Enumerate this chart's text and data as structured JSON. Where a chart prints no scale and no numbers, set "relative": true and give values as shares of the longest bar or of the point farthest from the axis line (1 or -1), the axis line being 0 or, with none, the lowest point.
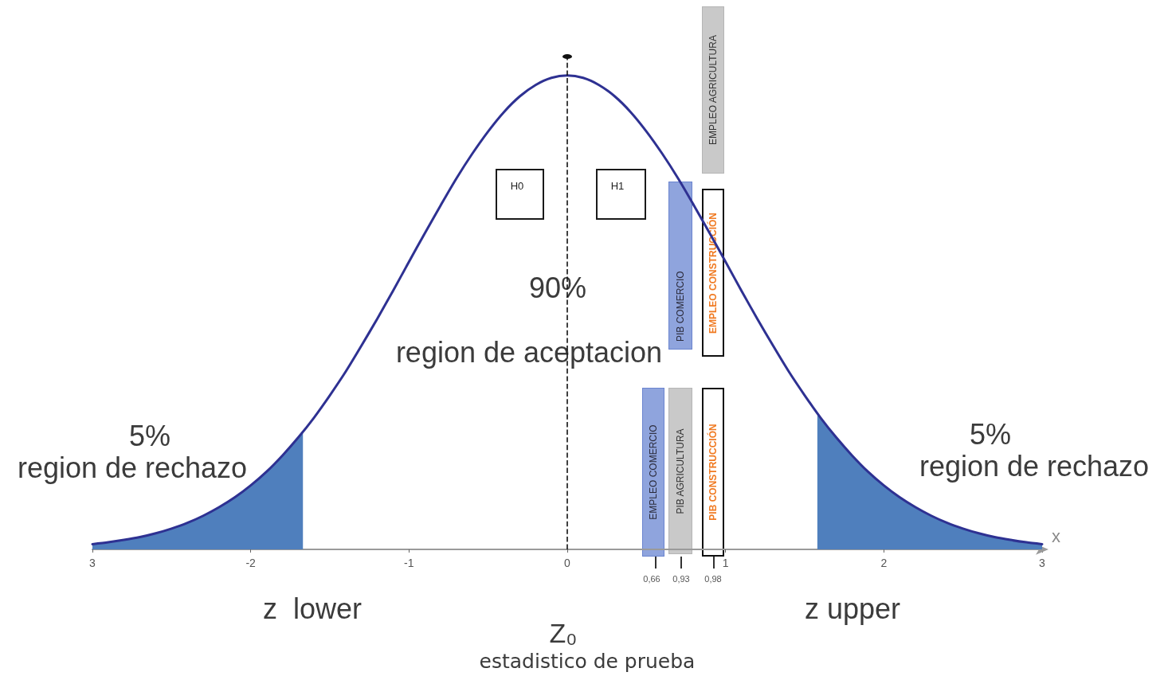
{
  "chart_data": {
    "type": "line",
    "relative": true,
    "xlim": [
      -3,
      3
    ],
    "xticks": [
      {
        "value": -3,
        "label": "3"
      },
      -2,
      -1,
      0,
      1,
      2,
      3
    ],
    "xlabel": "x",
    "series": [
      {
        "color": "#2e3192",
        "x": [
          -3,
          -2.9,
          -2.8,
          -2.7,
          -2.6,
          -2.5,
          -2.4,
          -2.3,
          -2.2,
          -2.1,
          -2,
          -1.9,
          -1.8,
          -1.7,
          -1.6,
          -1.5,
          -1.4,
          -1.3,
          -1.2,
          -1.1,
          -1,
          -0.9,
          -0.8,
          -0.7,
          -0.6,
          -0.5,
          -0.4,
          -0.3,
          -0.2,
          -0.1,
          0,
          0.1,
          0.2,
          0.3,
          0.4,
          0.5,
          0.6,
          0.7,
          0.8,
          0.9,
          1,
          1.1,
          1.2,
          1.3,
          1.4,
          1.5,
          1.6,
          1.7,
          1.8,
          1.9,
          2,
          2.1,
          2.2,
          2.3,
          2.4,
          2.5,
          2.6,
          2.7,
          2.8,
          2.9,
          3
        ],
        "values": [
          0.011,
          0.015,
          0.02,
          0.026,
          0.034,
          0.044,
          0.056,
          0.071,
          0.089,
          0.11,
          0.135,
          0.164,
          0.198,
          0.236,
          0.278,
          0.325,
          0.375,
          0.43,
          0.487,
          0.546,
          0.607,
          0.667,
          0.726,
          0.783,
          0.835,
          0.882,
          0.923,
          0.956,
          0.98,
          0.995,
          1,
          0.995,
          0.98,
          0.956,
          0.923,
          0.882,
          0.835,
          0.783,
          0.726,
          0.667,
          0.607,
          0.546,
          0.487,
          0.43,
          0.375,
          0.325,
          0.278,
          0.236,
          0.198,
          0.164,
          0.135,
          0.11,
          0.089,
          0.071,
          0.056,
          0.044,
          0.034,
          0.026,
          0.02,
          0.015,
          0.011
        ]
      },
      {
        "type": "area",
        "color": "#4f7fbd",
        "x": [
          -3,
          -2.9,
          -2.8,
          -2.7,
          -2.6,
          -2.5,
          -2.4,
          -2.3,
          -2.2,
          -2.1,
          -2,
          -1.9,
          -1.8,
          -1.7,
          -1.67
        ],
        "values": [
          0.011,
          0.015,
          0.02,
          0.026,
          0.034,
          0.044,
          0.056,
          0.071,
          0.089,
          0.11,
          0.135,
          0.164,
          0.198,
          0.236,
          0.248
        ]
      },
      {
        "type": "area",
        "color": "#4f7fbd",
        "x": [
          1.58,
          1.7,
          1.8,
          1.9,
          2,
          2.1,
          2.2,
          2.3,
          2.4,
          2.5,
          2.6,
          2.7,
          2.8,
          2.9,
          3
        ],
        "values": [
          0.287,
          0.236,
          0.198,
          0.164,
          0.135,
          0.11,
          0.089,
          0.071,
          0.056,
          0.044,
          0.034,
          0.026,
          0.02,
          0.015,
          0.011
        ]
      }
    ],
    "ref_lines": [
      {
        "axis": "x",
        "value": 0,
        "color": "#111111",
        "line_style": "dashed"
      }
    ],
    "annotations": [
      "H0",
      "H1",
      "90%",
      "region de aceptacion",
      "5%",
      "region de rechazo",
      "5%",
      "region de rechazo",
      "z  lower",
      "z upper",
      "Z₀",
      "estadistico de prueba",
      "EMPLEO AGRICULTURA",
      "PIB COMERCIO",
      "EMPLEO CONSTRUCCIÓN",
      "EMPLEO COMERCIO",
      "PIB AGRICULTURA",
      "PIB CONSTRUCCIÓN",
      "0,66",
      "0,93",
      "0,98"
    ]
  }
}
